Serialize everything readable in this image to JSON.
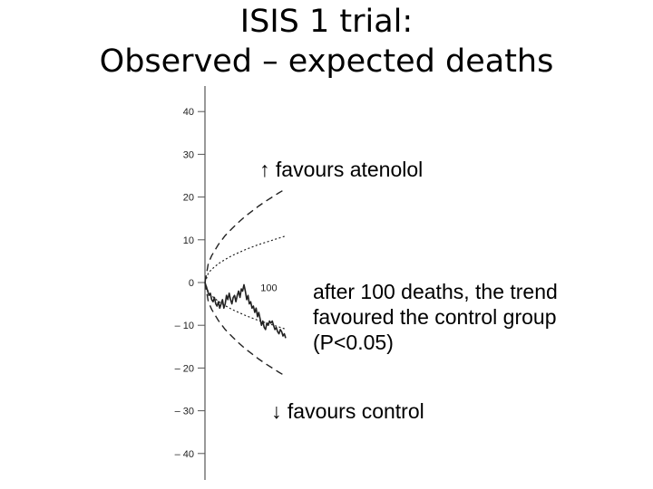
{
  "title": {
    "line1": "ISIS 1 trial:",
    "line2": "Observed – expected deaths"
  },
  "annotations": {
    "favours_atenolol": "↑ favours atenolol",
    "trend_line1": "after 100 deaths, the trend",
    "trend_line2": "favoured the control group",
    "trend_line3": "(P<0.05)",
    "favours_control": "↓ favours control"
  },
  "chart_data": {
    "type": "line",
    "title": "ISIS 1 trial: Observed – expected deaths",
    "xlabel": "",
    "ylabel": "",
    "xlim": [
      0,
      120
    ],
    "ylim": [
      -45,
      42
    ],
    "y_ticks": [
      40,
      30,
      20,
      10,
      0,
      -10,
      -20,
      -30,
      -40
    ],
    "y_tick_labels": [
      "40",
      "30",
      "20",
      "10",
      "0",
      "– 10",
      "– 20",
      "– 30",
      "– 40"
    ],
    "point_labels": [
      {
        "x": 95,
        "y": -2,
        "text": "100"
      }
    ],
    "series": [
      {
        "style": "solid",
        "x": [
          0,
          2,
          4,
          6,
          8,
          10,
          12,
          14,
          16,
          18,
          20,
          22,
          24,
          26,
          28,
          30,
          32,
          34,
          36,
          38,
          40,
          42,
          44,
          46,
          48,
          50,
          52,
          54,
          56,
          58,
          60,
          62,
          64,
          66,
          68,
          70,
          72,
          74,
          76,
          78,
          80,
          82,
          84,
          86,
          88,
          90,
          92,
          94,
          96,
          98,
          100,
          102,
          104,
          106,
          108,
          110,
          112,
          114,
          116,
          118,
          120
        ],
        "values": [
          0,
          -1,
          -2,
          -3,
          -2.5,
          -4,
          -4.5,
          -3.5,
          -5,
          -5.5,
          -4.5,
          -6,
          -5,
          -4,
          -6,
          -5,
          -3,
          -4,
          -2.5,
          -4,
          -5,
          -3.5,
          -3,
          -4.5,
          -3,
          -2,
          -3.5,
          -1.5,
          -2,
          -0.5,
          -2,
          -4,
          -3,
          -5,
          -4.5,
          -6,
          -5.5,
          -7,
          -6,
          -8,
          -7,
          -8.5,
          -10,
          -9,
          -10.5,
          -11,
          -9.5,
          -10,
          -9,
          -9.5,
          -9,
          -10,
          -11,
          -10.5,
          -11.5,
          -12,
          -11,
          -11.5,
          -12.5,
          -12,
          -13
        ]
      },
      {
        "style": "dashed",
        "x": [
          0,
          5,
          10,
          20,
          30,
          40,
          50,
          60,
          70,
          80,
          90,
          100,
          110,
          120
        ],
        "values": [
          0,
          4.5,
          6.3,
          8.9,
          11,
          12.6,
          14.1,
          15.5,
          16.7,
          17.9,
          19,
          20,
          21,
          21.9
        ]
      },
      {
        "style": "dotted",
        "x": [
          0,
          5,
          10,
          20,
          30,
          40,
          50,
          60,
          70,
          80,
          90,
          100,
          110,
          120
        ],
        "values": [
          0,
          2.2,
          3.1,
          4.4,
          5.4,
          6.3,
          7,
          7.7,
          8.3,
          8.9,
          9.4,
          9.9,
          10.4,
          10.9
        ]
      },
      {
        "style": "dotted",
        "x": [
          0,
          5,
          10,
          20,
          30,
          40,
          50,
          60,
          70,
          80,
          90,
          100,
          110,
          120
        ],
        "values": [
          0,
          -2.2,
          -3.1,
          -4.4,
          -5.4,
          -6.3,
          -7,
          -7.7,
          -8.3,
          -8.9,
          -9.4,
          -9.9,
          -10.4,
          -10.9
        ]
      },
      {
        "style": "dashed",
        "x": [
          0,
          5,
          10,
          20,
          30,
          40,
          50,
          60,
          70,
          80,
          90,
          100,
          110,
          120
        ],
        "values": [
          0,
          -4.5,
          -6.3,
          -8.9,
          -11,
          -12.6,
          -14.1,
          -15.5,
          -16.7,
          -17.9,
          -19,
          -20,
          -21,
          -21.9
        ]
      }
    ]
  }
}
